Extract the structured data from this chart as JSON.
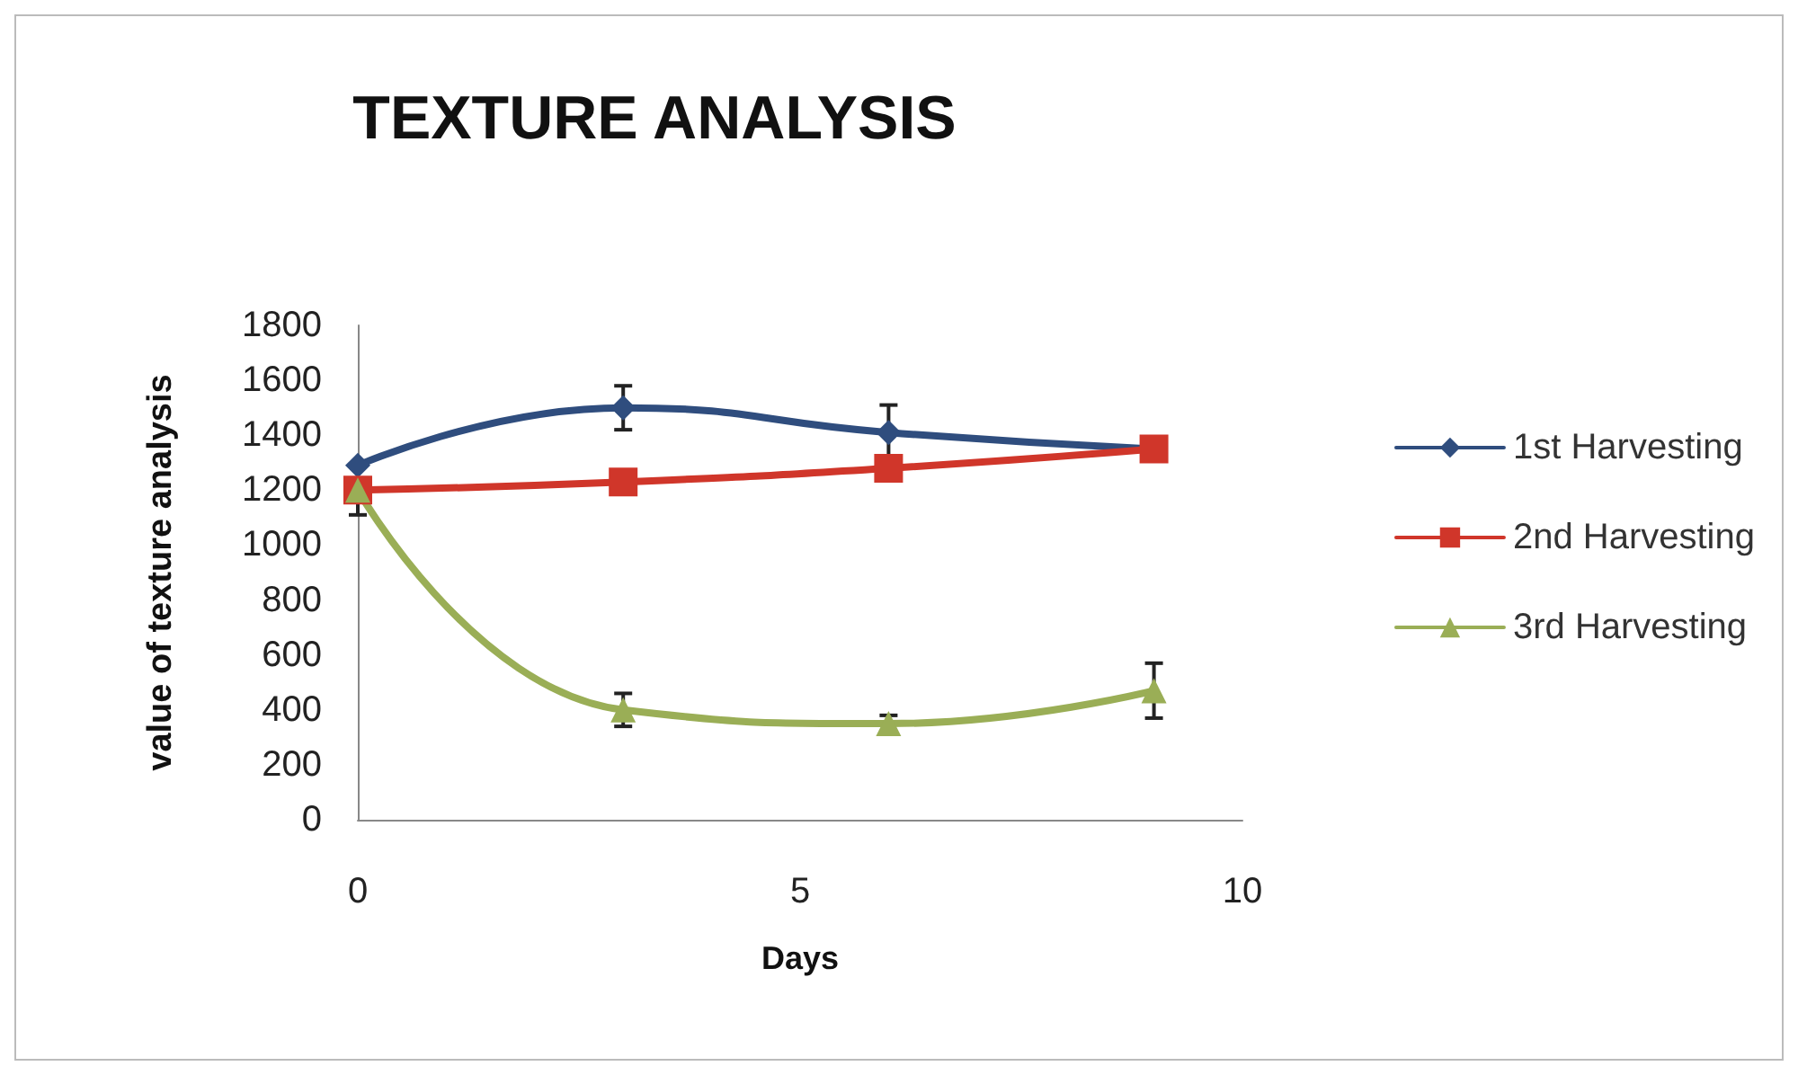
{
  "chart_data": {
    "type": "line",
    "title": "TEXTURE ANALYSIS",
    "xlabel": "Days",
    "ylabel": "value of texture analysis",
    "x": [
      0,
      3,
      6,
      9
    ],
    "xlim": [
      0,
      10
    ],
    "xticks": [
      0,
      5,
      10
    ],
    "ylim": [
      0,
      1800
    ],
    "yticks": [
      0,
      200,
      400,
      600,
      800,
      1000,
      1200,
      1400,
      1600,
      1800
    ],
    "grid": false,
    "legend": "right",
    "series": [
      {
        "name": "1st Harvesting",
        "color": "#2f4d7e",
        "marker": "diamond",
        "values": [
          1290,
          1500,
          1410,
          1350
        ],
        "errors": [
          null,
          80,
          100,
          null
        ]
      },
      {
        "name": "2nd Harvesting",
        "color": "#d0362a",
        "marker": "square",
        "values": [
          1200,
          1230,
          1280,
          1350
        ],
        "errors": [
          null,
          null,
          null,
          null
        ]
      },
      {
        "name": "3rd Harvesting",
        "color": "#9aae56",
        "marker": "triangle",
        "values": [
          1200,
          400,
          350,
          470
        ],
        "errors": [
          90,
          60,
          30,
          100
        ]
      }
    ]
  }
}
